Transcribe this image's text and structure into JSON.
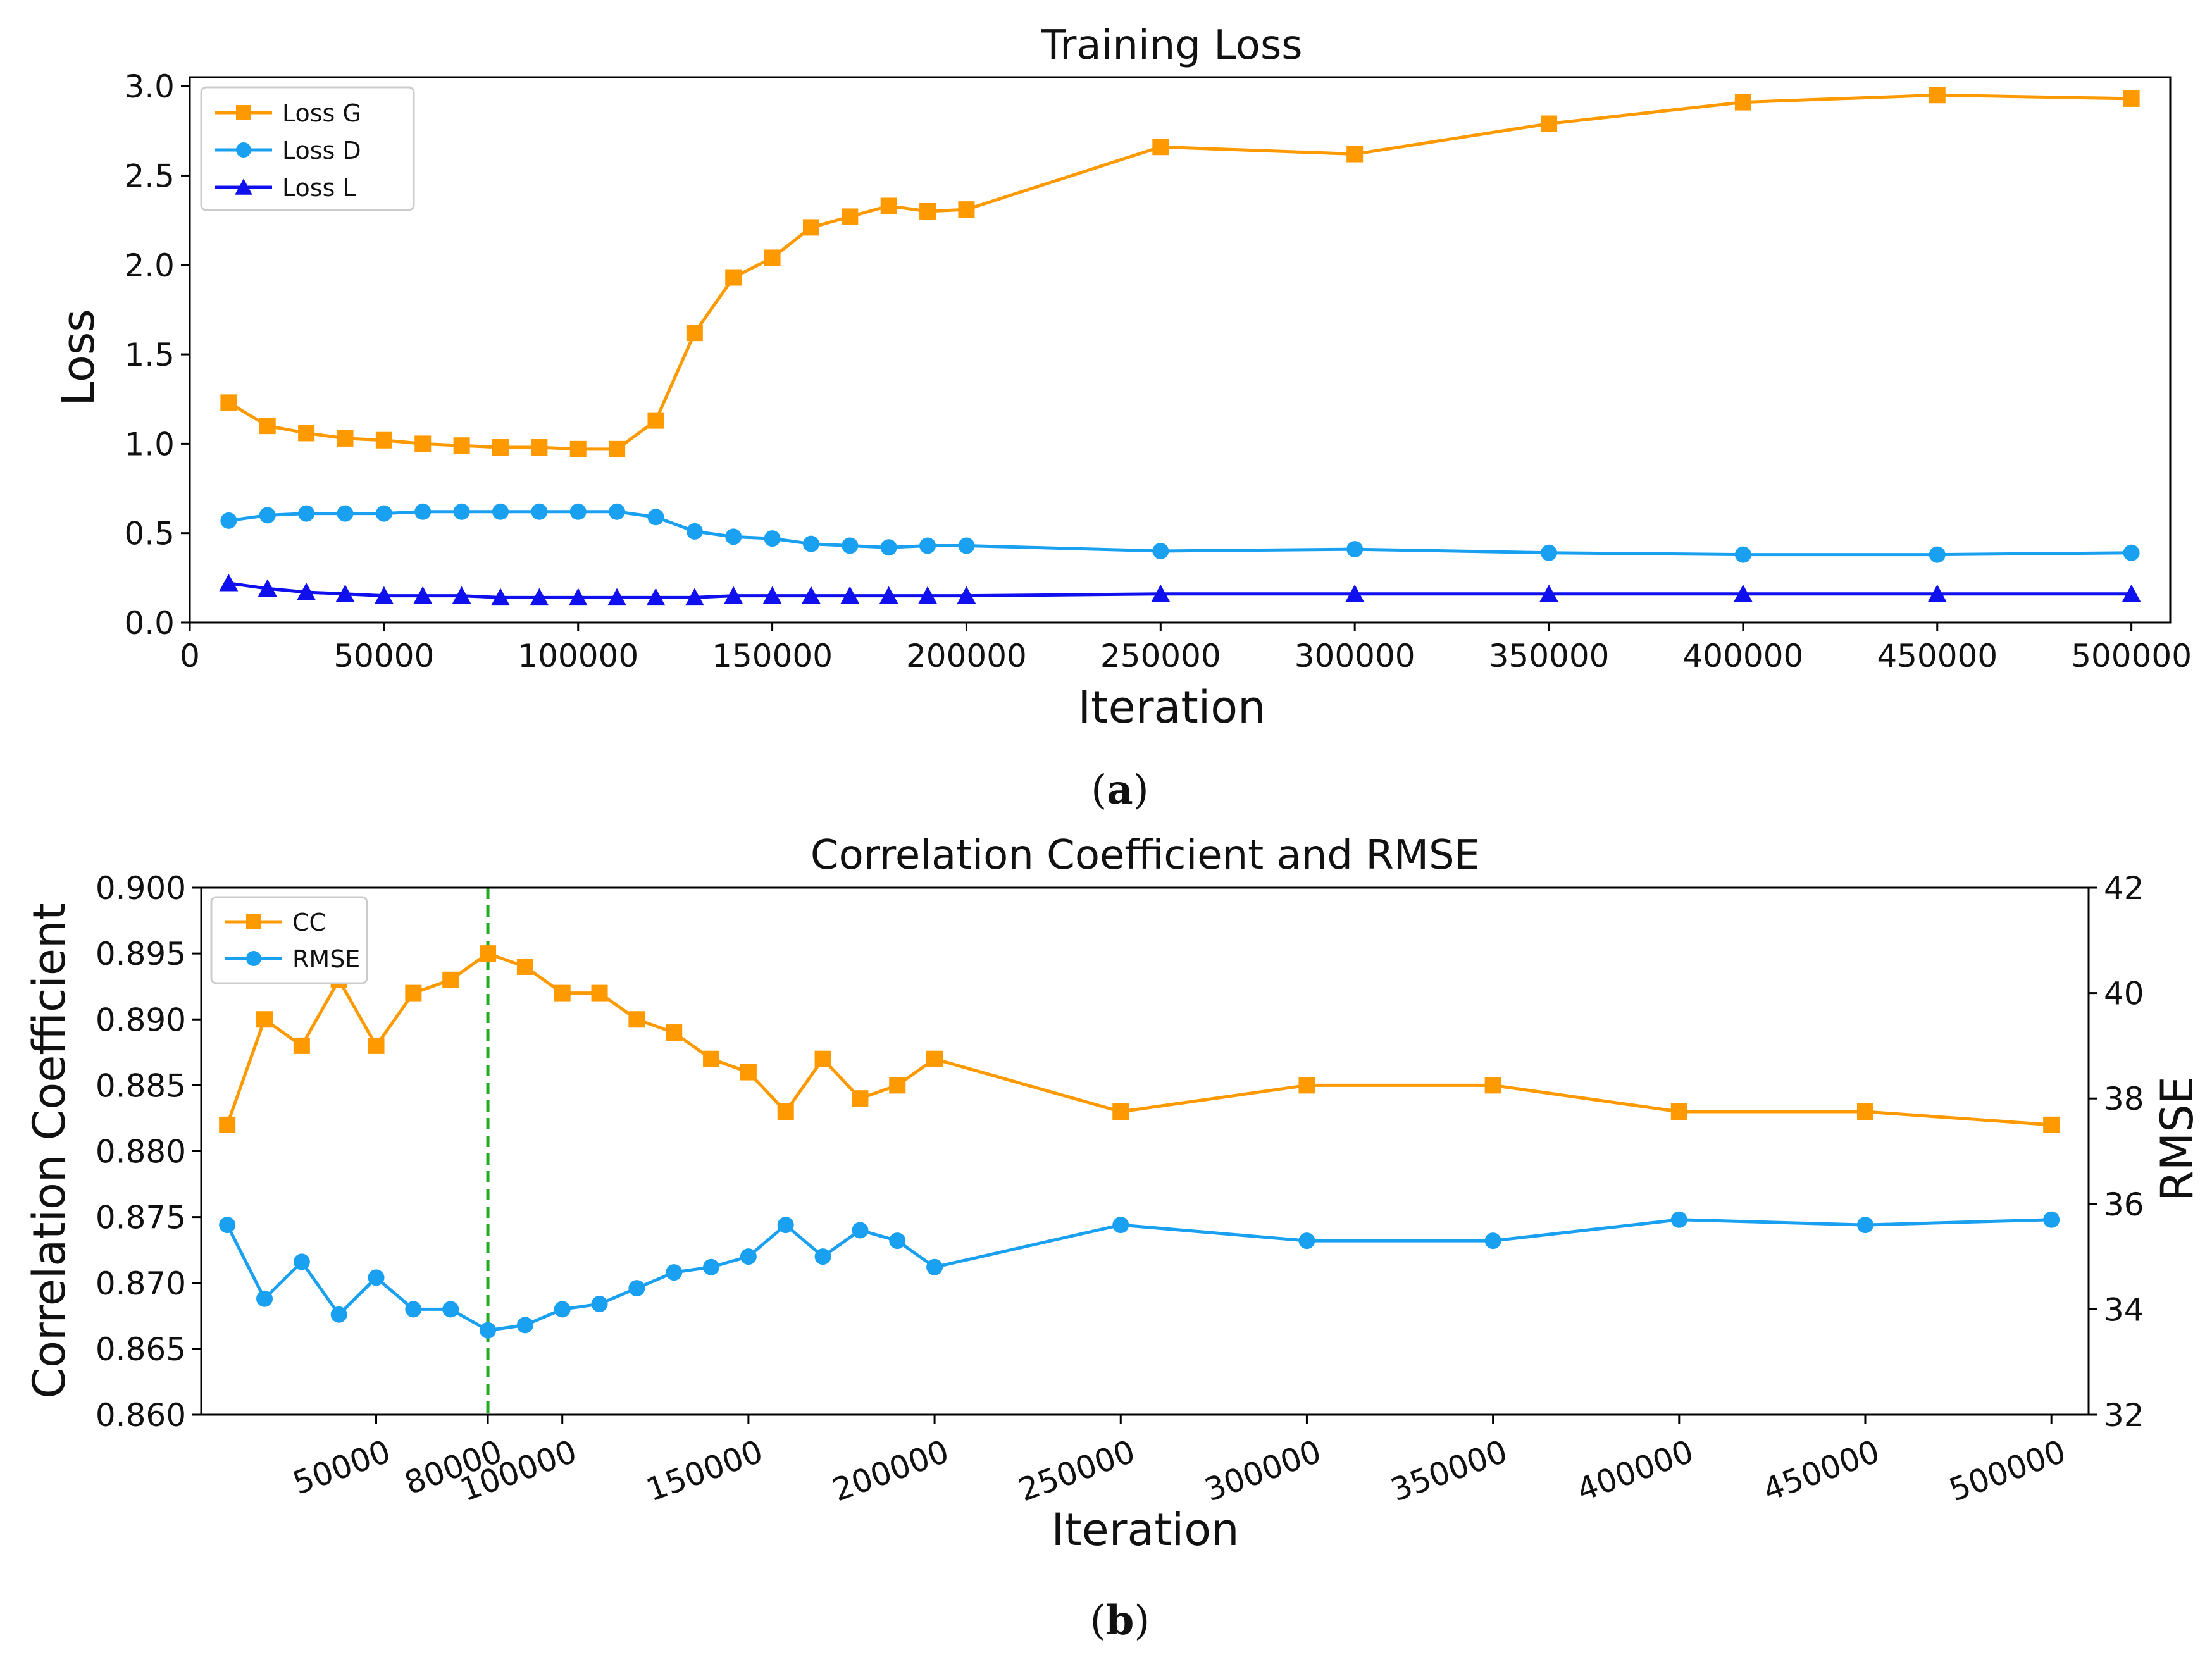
{
  "chart_data": [
    {
      "type": "line",
      "title": "Training Loss",
      "xlabel": "Iteration",
      "ylabel": "Loss",
      "panel_label": "a",
      "xlim": [
        0,
        510000
      ],
      "ylim": [
        0,
        3.05
      ],
      "xticks": [
        "0",
        "50000",
        "100000",
        "150000",
        "200000",
        "250000",
        "300000",
        "350000",
        "400000",
        "450000",
        "500000"
      ],
      "yticks": [
        "0.0",
        "0.5",
        "1.0",
        "1.5",
        "2.0",
        "2.5",
        "3.0"
      ],
      "x": [
        10000,
        20000,
        30000,
        40000,
        50000,
        60000,
        70000,
        80000,
        90000,
        100000,
        110000,
        120000,
        130000,
        140000,
        150000,
        160000,
        170000,
        180000,
        190000,
        200000,
        250000,
        300000,
        350000,
        400000,
        450000,
        500000
      ],
      "series": [
        {
          "name": "Loss G",
          "marker": "square",
          "color": "#ff9900",
          "values": [
            1.23,
            1.1,
            1.06,
            1.03,
            1.02,
            1.0,
            0.99,
            0.98,
            0.98,
            0.97,
            0.97,
            1.13,
            1.62,
            1.93,
            2.04,
            2.21,
            2.27,
            2.33,
            2.3,
            2.31,
            2.66,
            2.62,
            2.79,
            2.91,
            2.95,
            2.93
          ]
        },
        {
          "name": "Loss D",
          "marker": "circle",
          "color": "#1aa0f0",
          "values": [
            0.57,
            0.6,
            0.61,
            0.61,
            0.61,
            0.62,
            0.62,
            0.62,
            0.62,
            0.62,
            0.62,
            0.59,
            0.51,
            0.48,
            0.47,
            0.44,
            0.43,
            0.42,
            0.43,
            0.43,
            0.4,
            0.41,
            0.39,
            0.38,
            0.38,
            0.39
          ]
        },
        {
          "name": "Loss L",
          "marker": "triangle",
          "color": "#1010ee",
          "values": [
            0.22,
            0.19,
            0.17,
            0.16,
            0.15,
            0.15,
            0.15,
            0.14,
            0.14,
            0.14,
            0.14,
            0.14,
            0.14,
            0.15,
            0.15,
            0.15,
            0.15,
            0.15,
            0.15,
            0.15,
            0.16,
            0.16,
            0.16,
            0.16,
            0.16,
            0.16
          ]
        }
      ],
      "legend_position": "top-left"
    },
    {
      "type": "line",
      "title": "Correlation Coefficient and RMSE",
      "xlabel": "Iteration",
      "ylabel": "Correlation Coefficient",
      "ylabel_right": "RMSE",
      "panel_label": "b",
      "xlim": [
        3000,
        510000
      ],
      "ylim": [
        0.86,
        0.9
      ],
      "ylim_right": [
        32,
        42
      ],
      "xticks": [
        "50000",
        "80000",
        "100000",
        "150000",
        "200000",
        "250000",
        "300000",
        "350000",
        "400000",
        "450000",
        "500000"
      ],
      "yticks": [
        "0.860",
        "0.865",
        "0.870",
        "0.875",
        "0.880",
        "0.885",
        "0.890",
        "0.895",
        "0.900"
      ],
      "yticks_right": [
        "32",
        "34",
        "36",
        "38",
        "40",
        "42"
      ],
      "x": [
        10000,
        20000,
        30000,
        40000,
        50000,
        60000,
        70000,
        80000,
        90000,
        100000,
        110000,
        120000,
        130000,
        140000,
        150000,
        160000,
        170000,
        180000,
        190000,
        200000,
        250000,
        300000,
        350000,
        400000,
        450000,
        500000
      ],
      "series": [
        {
          "name": "CC",
          "marker": "square",
          "color": "#ff9900",
          "axis": "left",
          "values": [
            0.882,
            0.89,
            0.888,
            0.893,
            0.888,
            0.892,
            0.893,
            0.895,
            0.894,
            0.892,
            0.892,
            0.89,
            0.889,
            0.887,
            0.886,
            0.883,
            0.887,
            0.884,
            0.885,
            0.887,
            0.883,
            0.885,
            0.885,
            0.883,
            0.883,
            0.882
          ]
        },
        {
          "name": "RMSE",
          "marker": "circle",
          "color": "#1aa0f0",
          "axis": "right",
          "values": [
            35.6,
            34.2,
            34.9,
            33.9,
            34.6,
            34.0,
            34.0,
            33.6,
            33.7,
            34.0,
            34.1,
            34.4,
            34.7,
            34.8,
            35.0,
            35.6,
            35.0,
            35.5,
            35.3,
            34.8,
            35.6,
            35.3,
            35.3,
            35.7,
            35.6,
            35.7
          ]
        }
      ],
      "vline": {
        "x": 80000,
        "style": "dashed",
        "color": "#22aa22"
      },
      "legend_position": "top-left"
    }
  ]
}
